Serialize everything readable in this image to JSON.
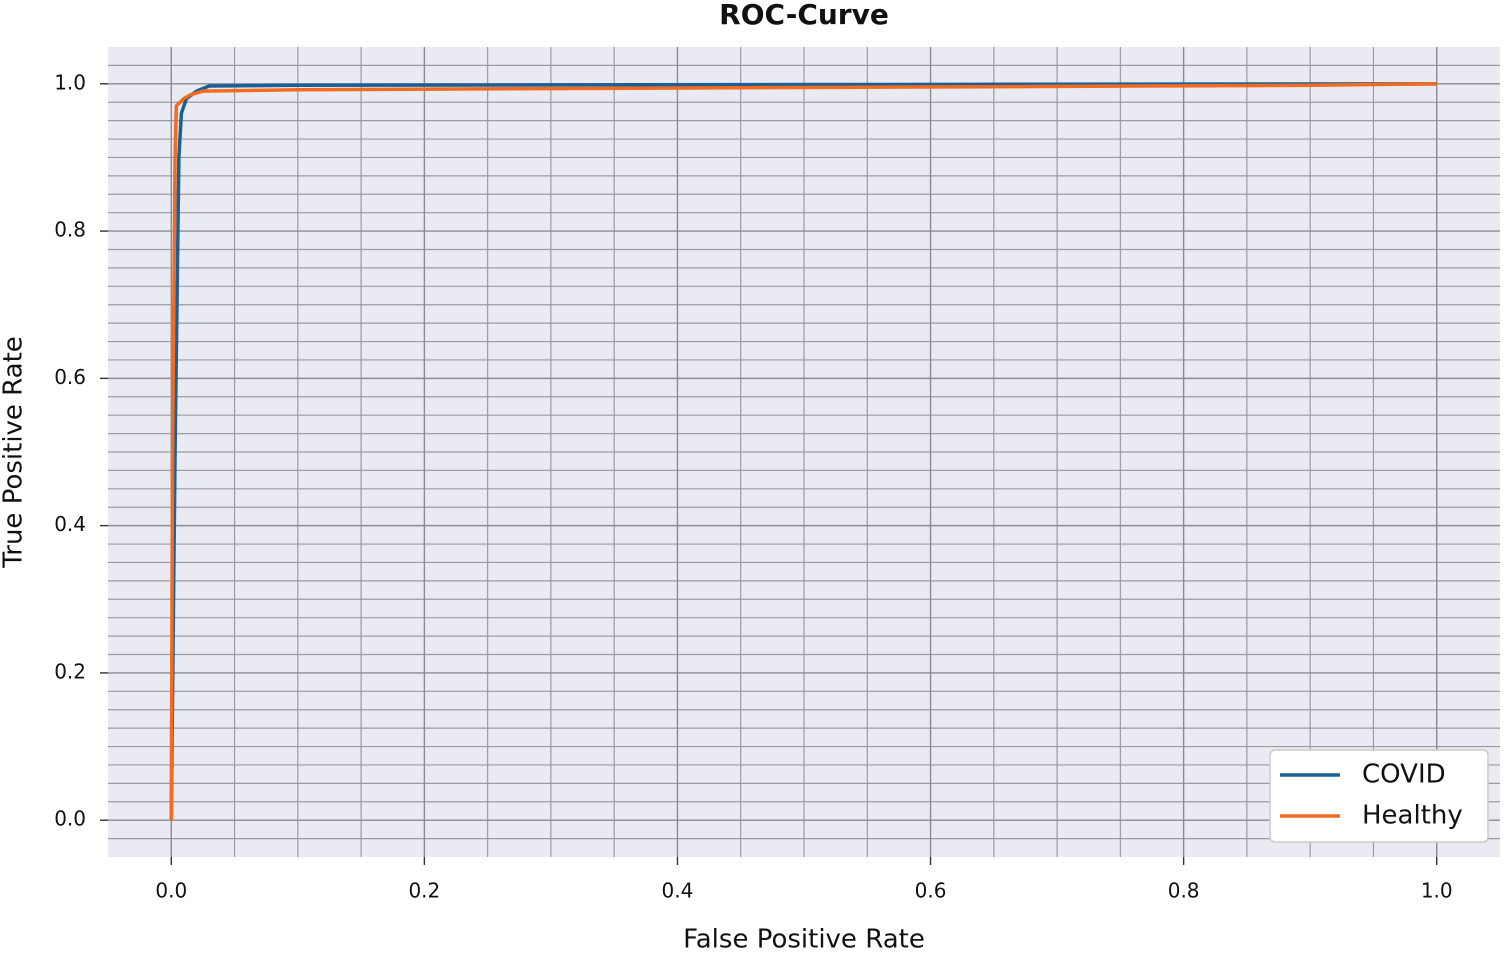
{
  "chart_data": {
    "type": "line",
    "title": "ROC-Curve",
    "x_label": "False Positive Rate",
    "y_label": "True Positive Rate",
    "xlim": [
      -0.05,
      1.05
    ],
    "ylim": [
      -0.05,
      1.05
    ],
    "xticks": [
      {
        "value": 0,
        "label": "0.0"
      },
      0.2,
      0.4,
      0.6,
      0.8,
      {
        "value": 1,
        "label": "1.0"
      }
    ],
    "yticks": [
      {
        "value": 0,
        "label": "0.0"
      },
      0.2,
      0.4,
      0.6,
      0.8,
      {
        "value": 1,
        "label": "1.0"
      }
    ],
    "x_minor_ticks": [
      0.05,
      0.1,
      0.15,
      0.25,
      0.3,
      0.35,
      0.45,
      0.5,
      0.55,
      0.65,
      0.7,
      0.75,
      0.85,
      0.9,
      0.95
    ],
    "y_minor_ticks": [
      -0.025,
      0.025,
      0.05,
      0.075,
      0.1,
      0.125,
      0.15,
      0.175,
      0.225,
      0.25,
      0.275,
      0.3,
      0.325,
      0.35,
      0.375,
      0.425,
      0.45,
      0.475,
      0.5,
      0.525,
      0.55,
      0.575,
      0.625,
      0.65,
      0.675,
      0.7,
      0.725,
      0.75,
      0.775,
      0.825,
      0.85,
      0.875,
      0.9,
      0.925,
      0.95,
      0.975,
      1.025
    ],
    "grid": true,
    "legend": "lower right",
    "series": [
      {
        "name": "COVID",
        "color": "#1a6096",
        "x": [
          0,
          0.003,
          0.006,
          0.008,
          0.012,
          0.02,
          0.03,
          0.1,
          0.5,
          1
        ],
        "values": [
          0,
          0.5,
          0.9,
          0.96,
          0.98,
          0.99,
          0.997,
          0.998,
          0.999,
          1
        ]
      },
      {
        "name": "Healthy",
        "color": "#f26b21",
        "x": [
          0,
          0.001,
          0.003,
          0.004,
          0.01,
          0.015,
          0.025,
          0.1,
          0.5,
          0.9,
          1
        ],
        "values": [
          0,
          0.5,
          0.9,
          0.97,
          0.98,
          0.985,
          0.99,
          0.992,
          0.995,
          0.998,
          1
        ]
      }
    ]
  }
}
